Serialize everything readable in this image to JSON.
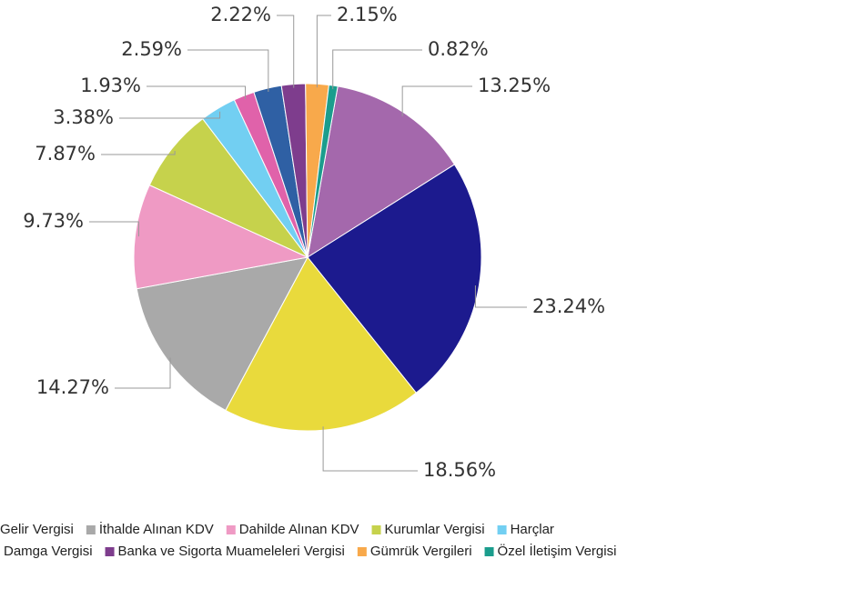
{
  "chart_data": {
    "type": "pie",
    "categories": [
      null,
      null,
      "Gelir Vergisi",
      "İthalde Alınan KDV",
      "Dahilde Alınan KDV",
      "Kurumlar Vergisi",
      "Harçlar",
      null,
      "Damga Vergisi",
      "Banka ve Sigorta Muameleleri Vergisi",
      "Gümrük Vergileri",
      "Özel İletişim Vergisi"
    ],
    "values": [
      13.25,
      23.24,
      18.56,
      14.27,
      9.73,
      7.87,
      3.38,
      1.93,
      2.59,
      2.22,
      2.15,
      0.82
    ],
    "value_labels": [
      "13.25%",
      "23.24%",
      "18.56%",
      "14.27%",
      "9.73%",
      "7.87%",
      "3.38%",
      "1.93%",
      "2.59%",
      "2.22%",
      "2.15%",
      "0.82%"
    ],
    "colors": [
      "#a468ac",
      "#1c1a8e",
      "#e9da3c",
      "#a9a9a9",
      "#ef9ac4",
      "#c6d24c",
      "#72cff2",
      "#e062aa",
      "#2f60a4",
      "#7e3d8d",
      "#f8a94b",
      "#1b9d8d"
    ]
  }
}
